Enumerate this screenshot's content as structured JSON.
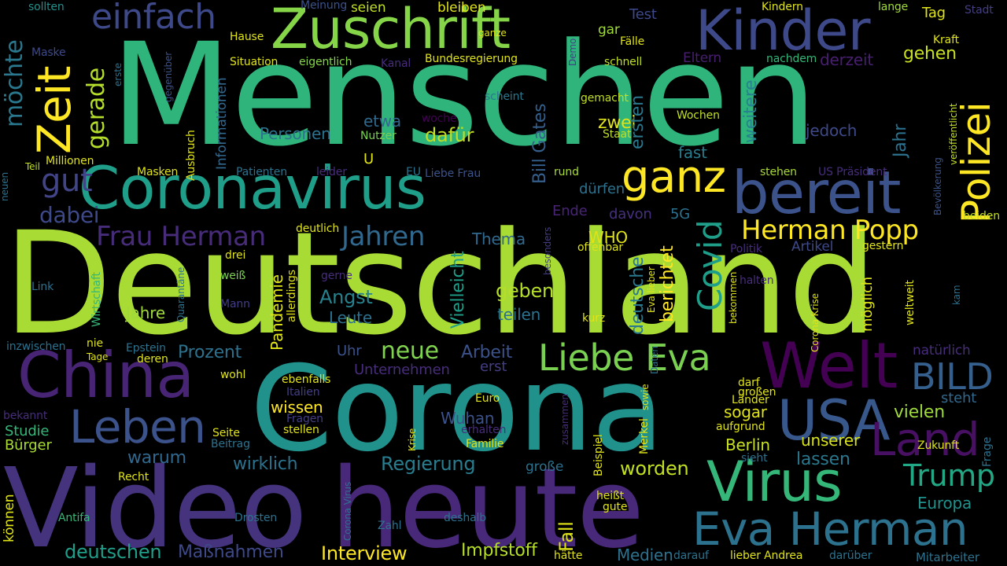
{
  "words": [
    {
      "text": "Menschen",
      "color": "#2fb47c"
    },
    {
      "text": "Deutschland",
      "color": "#a8db34"
    },
    {
      "text": "Corona",
      "color": "#21918c"
    },
    {
      "text": "heute",
      "color": "#482878"
    },
    {
      "text": "Video",
      "color": "#46337e"
    },
    {
      "text": "Zuschrift",
      "color": "#86d549"
    },
    {
      "text": "Kinder",
      "color": "#3e4989"
    },
    {
      "text": "Coronavirus",
      "color": "#1f9e89"
    },
    {
      "text": "bereit",
      "color": "#3b528b"
    },
    {
      "text": "ganz",
      "color": "#fde725"
    },
    {
      "text": "Zeit",
      "color": "#fde725"
    },
    {
      "text": "Polizei",
      "color": "#fde725"
    },
    {
      "text": "China",
      "color": "#482475"
    },
    {
      "text": "Welt",
      "color": "#440154"
    },
    {
      "text": "Leben",
      "color": "#3b528b"
    },
    {
      "text": "Virus",
      "color": "#35b779"
    },
    {
      "text": "USA",
      "color": "#38588c"
    },
    {
      "text": "Land",
      "color": "#471063"
    },
    {
      "text": "Eva Herman",
      "color": "#2c728e"
    },
    {
      "text": "Liebe Eva",
      "color": "#7ad151"
    },
    {
      "text": "BILD",
      "color": "#355f8d"
    },
    {
      "text": "Herman Popp",
      "color": "#fde725"
    },
    {
      "text": "Covid",
      "color": "#1f9e89"
    },
    {
      "text": "Trump",
      "color": "#22a884"
    },
    {
      "text": "Frau Herman",
      "color": "#472c7a"
    },
    {
      "text": "Jahren",
      "color": "#31688e"
    },
    {
      "text": "einfach",
      "color": "#3e4989"
    },
    {
      "text": "gerade",
      "color": "#b5de2b"
    },
    {
      "text": "möchte",
      "color": "#2a788e"
    },
    {
      "text": "gut",
      "color": "#414487"
    },
    {
      "text": "dabei",
      "color": "#3e4989"
    },
    {
      "text": "Personen",
      "color": "#2c728e"
    },
    {
      "text": "etwa",
      "color": "#31688e"
    },
    {
      "text": "dafür",
      "color": "#c2df23"
    },
    {
      "text": "zwei",
      "color": "#dfe318"
    },
    {
      "text": "ersten",
      "color": "#2a788e"
    },
    {
      "text": "Jahr",
      "color": "#2c728e"
    },
    {
      "text": "weitere",
      "color": "#26828e"
    },
    {
      "text": "jedoch",
      "color": "#3e4989"
    },
    {
      "text": "derzeit",
      "color": "#481f70"
    },
    {
      "text": "gehen",
      "color": "#c8e020"
    },
    {
      "text": "Bill Gates",
      "color": "#35608d"
    },
    {
      "text": "fast",
      "color": "#287d8e"
    },
    {
      "text": "Ende",
      "color": "#482475"
    },
    {
      "text": "davon",
      "color": "#46307e"
    },
    {
      "text": "dürfen",
      "color": "#2c728e"
    },
    {
      "text": "Thema",
      "color": "#31688e"
    },
    {
      "text": "WHO",
      "color": "#dfe318"
    },
    {
      "text": "5G",
      "color": "#2c728e"
    },
    {
      "text": "deutsche",
      "color": "#2a788e"
    },
    {
      "text": "berichtet",
      "color": "#fde725"
    },
    {
      "text": "neue",
      "color": "#7fd34e"
    },
    {
      "text": "Arbeit",
      "color": "#3b528b"
    },
    {
      "text": "Angst",
      "color": "#26828e"
    },
    {
      "text": "Leute",
      "color": "#2d708e"
    },
    {
      "text": "geben",
      "color": "#b5de2b"
    },
    {
      "text": "teilen",
      "color": "#2c728e"
    },
    {
      "text": "Vielleicht",
      "color": "#1f9e89"
    },
    {
      "text": "Pandemie",
      "color": "#dfe318"
    },
    {
      "text": "Jahre",
      "color": "#a0da39"
    },
    {
      "text": "Prozent",
      "color": "#2c728e"
    },
    {
      "text": "Uhr",
      "color": "#3b528b"
    },
    {
      "text": "erst",
      "color": "#433e85"
    },
    {
      "text": "Unternehmen",
      "color": "#472d7b"
    },
    {
      "text": "wissen",
      "color": "#fde725"
    },
    {
      "text": "Studie",
      "color": "#35b779"
    },
    {
      "text": "Bürger",
      "color": "#a8db34"
    },
    {
      "text": "warum",
      "color": "#31688e"
    },
    {
      "text": "Wuhan",
      "color": "#3b528b"
    },
    {
      "text": "wirklich",
      "color": "#2c728e"
    },
    {
      "text": "Regierung",
      "color": "#287d8e"
    },
    {
      "text": "worden",
      "color": "#c2df23"
    },
    {
      "text": "Berlin",
      "color": "#c8e020"
    },
    {
      "text": "unserer",
      "color": "#d8e219"
    },
    {
      "text": "lassen",
      "color": "#2a788e"
    },
    {
      "text": "vielen",
      "color": "#9fda3a"
    },
    {
      "text": "steht",
      "color": "#31688e"
    },
    {
      "text": "sogar",
      "color": "#dfe318"
    },
    {
      "text": "Europa",
      "color": "#21918c"
    },
    {
      "text": "deutschen",
      "color": "#1f9e89"
    },
    {
      "text": "Maßnahmen",
      "color": "#3e4989"
    },
    {
      "text": "Interview",
      "color": "#fde725"
    },
    {
      "text": "Impfstoff",
      "color": "#b5de2b"
    },
    {
      "text": "Medien",
      "color": "#2c728e"
    },
    {
      "text": "Fall",
      "color": "#dfe318"
    },
    {
      "text": "möglich",
      "color": "#dfe318"
    },
    {
      "text": "weltweit",
      "color": "#dfe318"
    },
    {
      "text": "Mitarbeiter",
      "color": "#2c728e"
    },
    {
      "text": "sollten",
      "color": "#21918c"
    },
    {
      "text": "Meinung",
      "color": "#3b528b"
    },
    {
      "text": "seien",
      "color": "#c2df23"
    },
    {
      "text": "bleiben",
      "color": "#dfe318"
    },
    {
      "text": "gar",
      "color": "#a0da39"
    },
    {
      "text": "Test",
      "color": "#3e4989"
    },
    {
      "text": "Kindern",
      "color": "#dfe318"
    },
    {
      "text": "lange",
      "color": "#a0da39"
    },
    {
      "text": "Tag",
      "color": "#dfe318"
    },
    {
      "text": "Stadt",
      "color": "#433e85"
    },
    {
      "text": "Kraft",
      "color": "#dfe318"
    },
    {
      "text": "Fälle",
      "color": "#dfe318"
    },
    {
      "text": "ganze",
      "color": "#dfe318"
    },
    {
      "text": "Hause",
      "color": "#dfe318"
    },
    {
      "text": "Situation",
      "color": "#dfe318"
    },
    {
      "text": "eigentlich",
      "color": "#86d549"
    },
    {
      "text": "Kanal",
      "color": "#472d7b"
    },
    {
      "text": "Bundesregierung",
      "color": "#dfe318"
    },
    {
      "text": "schnell",
      "color": "#c2df23"
    },
    {
      "text": "Eltern",
      "color": "#481f70"
    },
    {
      "text": "nachdem",
      "color": "#35b779"
    },
    {
      "text": "Maske",
      "color": "#3e4989"
    },
    {
      "text": "erste",
      "color": "#2c728e"
    },
    {
      "text": "gegenüber",
      "color": "#3b528b"
    },
    {
      "text": "Informationen",
      "color": "#31688e"
    },
    {
      "text": "Demo",
      "color": "#433e85"
    },
    {
      "text": "scheint",
      "color": "#2a788e"
    },
    {
      "text": "gemacht",
      "color": "#c2df23"
    },
    {
      "text": "woche",
      "color": "#440154"
    },
    {
      "text": "Nutzer",
      "color": "#7ad151"
    },
    {
      "text": "Staat",
      "color": "#c2df23"
    },
    {
      "text": "Wochen",
      "color": "#c2df23"
    },
    {
      "text": "veröffentlicht",
      "color": "#c2df23"
    },
    {
      "text": "Bevölkerung",
      "color": "#3b528b"
    },
    {
      "text": "Ausbruch",
      "color": "#dfe318"
    },
    {
      "text": "Millionen",
      "color": "#dfe318"
    },
    {
      "text": "Teil",
      "color": "#c2df23"
    },
    {
      "text": "neuen",
      "color": "#2c728e"
    },
    {
      "text": "Masken",
      "color": "#dfe318"
    },
    {
      "text": "Patienten",
      "color": "#2c728e"
    },
    {
      "text": "leider",
      "color": "#472d7b"
    },
    {
      "text": "EU",
      "color": "#2c728e"
    },
    {
      "text": "Liebe Frau",
      "color": "#3b528b"
    },
    {
      "text": "rund",
      "color": "#a8db34"
    },
    {
      "text": "stehen",
      "color": "#a8db34"
    },
    {
      "text": "US Präsident",
      "color": "#472d7b"
    },
    {
      "text": "beiden",
      "color": "#c2df23"
    },
    {
      "text": "deutlich",
      "color": "#dfe318"
    },
    {
      "text": "offenbar",
      "color": "#dfe318"
    },
    {
      "text": "Politik",
      "color": "#472d7b"
    },
    {
      "text": "Artikel",
      "color": "#3e4989"
    },
    {
      "text": "gestern",
      "color": "#dfe318"
    },
    {
      "text": "besonders",
      "color": "#433e85"
    },
    {
      "text": "drei",
      "color": "#dfe318"
    },
    {
      "text": "gerne",
      "color": "#472d7b"
    },
    {
      "text": "Link",
      "color": "#2c728e"
    },
    {
      "text": "Wirtschaft",
      "color": "#35b779"
    },
    {
      "text": "weiß",
      "color": "#7ad151"
    },
    {
      "text": "Quarantäne",
      "color": "#2c728e"
    },
    {
      "text": "allerdings",
      "color": "#dfe318"
    },
    {
      "text": "Mann",
      "color": "#433e85"
    },
    {
      "text": "Eva lieber",
      "color": "#dfe318"
    },
    {
      "text": "halten",
      "color": "#472d7b"
    },
    {
      "text": "bekommen",
      "color": "#dfe318"
    },
    {
      "text": "Corona Krise",
      "color": "#dfe318"
    },
    {
      "text": "kurz",
      "color": "#dfe318"
    },
    {
      "text": "kam",
      "color": "#2c728e"
    },
    {
      "text": "inzwischen",
      "color": "#2c728e"
    },
    {
      "text": "nie",
      "color": "#dfe318"
    },
    {
      "text": "Epstein",
      "color": "#2c728e"
    },
    {
      "text": "Tage",
      "color": "#dfe318"
    },
    {
      "text": "deren",
      "color": "#dfe318"
    },
    {
      "text": "natürlich",
      "color": "#472d7b"
    },
    {
      "text": "wohl",
      "color": "#dfe318"
    },
    {
      "text": "Daten",
      "color": "#2c728e"
    },
    {
      "text": "ebenfalls",
      "color": "#dfe318"
    },
    {
      "text": "darf",
      "color": "#dfe318"
    },
    {
      "text": "großen",
      "color": "#dfe318"
    },
    {
      "text": "Länder",
      "color": "#dfe318"
    },
    {
      "text": "Italien",
      "color": "#433e85"
    },
    {
      "text": "sowie",
      "color": "#dfe318"
    },
    {
      "text": "bekannt",
      "color": "#472d7b"
    },
    {
      "text": "Euro",
      "color": "#dfe318"
    },
    {
      "text": "Fragen",
      "color": "#433e85"
    },
    {
      "text": "zusammen",
      "color": "#472d7b"
    },
    {
      "text": "erhalten",
      "color": "#472d7b"
    },
    {
      "text": "stellen",
      "color": "#dfe318"
    },
    {
      "text": "aufgrund",
      "color": "#dfe318"
    },
    {
      "text": "Seite",
      "color": "#dfe318"
    },
    {
      "text": "Krise",
      "color": "#dfe318"
    },
    {
      "text": "Familie",
      "color": "#dfe318"
    },
    {
      "text": "Beispiel",
      "color": "#dfe318"
    },
    {
      "text": "Merkel",
      "color": "#dfe318"
    },
    {
      "text": "Zukunft",
      "color": "#dfe318"
    },
    {
      "text": "Beitrag",
      "color": "#2c728e"
    },
    {
      "text": "sieht",
      "color": "#2c728e"
    },
    {
      "text": "Frage",
      "color": "#2c728e"
    },
    {
      "text": "Recht",
      "color": "#dfe318"
    },
    {
      "text": "große",
      "color": "#2c728e"
    },
    {
      "text": "heißt",
      "color": "#dfe318"
    },
    {
      "text": "gute",
      "color": "#dfe318"
    },
    {
      "text": "Antifa",
      "color": "#35b779"
    },
    {
      "text": "Drosten",
      "color": "#2c728e"
    },
    {
      "text": "Corona Virus",
      "color": "#2c728e"
    },
    {
      "text": "Zahl",
      "color": "#2c728e"
    },
    {
      "text": "deshalb",
      "color": "#2c728e"
    },
    {
      "text": "können",
      "color": "#dfe318"
    },
    {
      "text": "hätte",
      "color": "#dfe318"
    },
    {
      "text": "darauf",
      "color": "#2c728e"
    },
    {
      "text": "lieber Andrea",
      "color": "#dfe318"
    },
    {
      "text": "darüber",
      "color": "#2c728e"
    },
    {
      "text": "U",
      "color": "#dfe318"
    }
  ]
}
